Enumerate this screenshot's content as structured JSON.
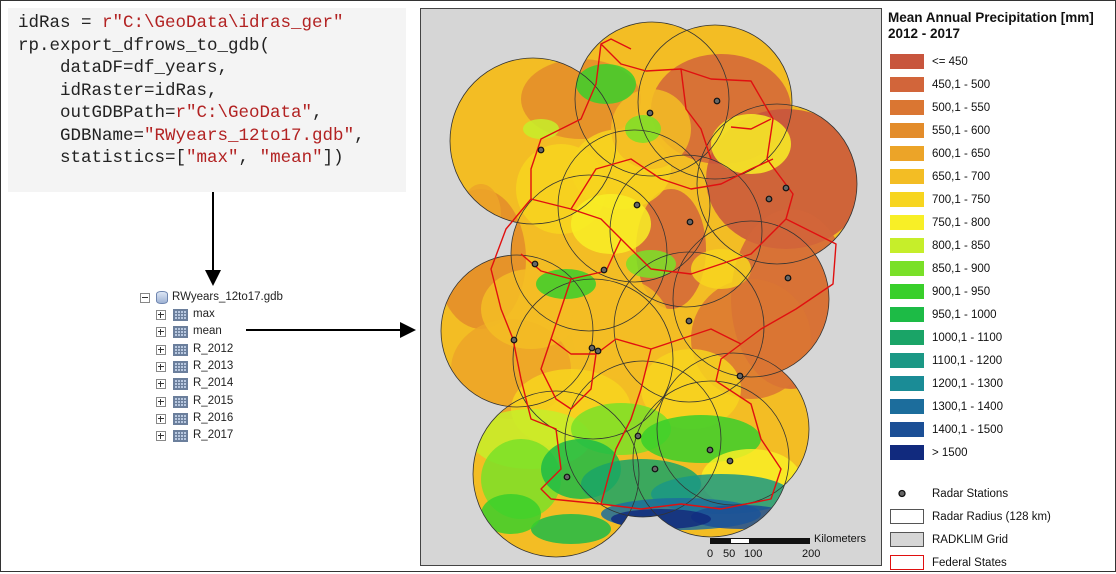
{
  "code": {
    "lines": [
      [
        {
          "t": "idRas = "
        },
        {
          "t": "r\"C:\\GeoData\\idras_ger\"",
          "s": 1
        }
      ],
      [
        {
          "t": "rp.export_dfrows_to_gdb("
        }
      ],
      [
        {
          "t": "    dataDF=df_years,"
        }
      ],
      [
        {
          "t": "    idRaster=idRas,"
        }
      ],
      [
        {
          "t": "    outGDBPath="
        },
        {
          "t": "r\"C:\\GeoData\"",
          "s": 1
        },
        {
          "t": ","
        }
      ],
      [
        {
          "t": "    GDBName="
        },
        {
          "t": "\"RWyears_12to17.gdb\"",
          "s": 1
        },
        {
          "t": ","
        }
      ],
      [
        {
          "t": "    statistics=["
        },
        {
          "t": "\"max\"",
          "s": 1
        },
        {
          "t": ", "
        },
        {
          "t": "\"mean\"",
          "s": 1
        },
        {
          "t": "])"
        }
      ]
    ]
  },
  "tree": {
    "root": "RWyears_12to17.gdb",
    "items": [
      "max",
      "mean",
      "R_2012",
      "R_2013",
      "R_2014",
      "R_2015",
      "R_2016",
      "R_2017"
    ]
  },
  "scalebar": {
    "unit": "Kilometers",
    "ticks": [
      "0",
      "50",
      "100",
      "200"
    ]
  },
  "legend": {
    "title_line1": "Mean Annual Precipitation [mm]",
    "title_line2": "2012 - 2017",
    "classes": [
      {
        "label": "<= 450",
        "color": "#c8553d"
      },
      {
        "label": "450,1 - 500",
        "color": "#d2653a"
      },
      {
        "label": "500,1 - 550",
        "color": "#da7632"
      },
      {
        "label": "550,1 - 600",
        "color": "#e38c2a"
      },
      {
        "label": "600,1 - 650",
        "color": "#eca428"
      },
      {
        "label": "650,1 - 700",
        "color": "#f3bd24"
      },
      {
        "label": "700,1 - 750",
        "color": "#f7d51f"
      },
      {
        "label": "750,1 - 800",
        "color": "#f8ef26"
      },
      {
        "label": "800,1 - 850",
        "color": "#c6ee2a"
      },
      {
        "label": "850,1 - 900",
        "color": "#7ae028"
      },
      {
        "label": "900,1 - 950",
        "color": "#39cf2b"
      },
      {
        "label": "950,1 - 1000",
        "color": "#1dbb46"
      },
      {
        "label": "1000,1 - 1100",
        "color": "#1aa467"
      },
      {
        "label": "1100,1 - 1200",
        "color": "#1b9885"
      },
      {
        "label": "1200,1 - 1300",
        "color": "#1a8c96"
      },
      {
        "label": "1300,1 - 1400",
        "color": "#1c6d9c"
      },
      {
        "label": "1400,1 - 1500",
        "color": "#1b4f96"
      },
      {
        "label": "> 1500",
        "color": "#112a7e"
      }
    ],
    "symbols": [
      {
        "label": "Radar Stations",
        "kind": "station"
      },
      {
        "label": "Radar Radius (128 km)",
        "kind": "radius"
      },
      {
        "label": "RADKLIM Grid",
        "kind": "grid"
      },
      {
        "label": "Federal States",
        "kind": "states"
      }
    ]
  }
}
